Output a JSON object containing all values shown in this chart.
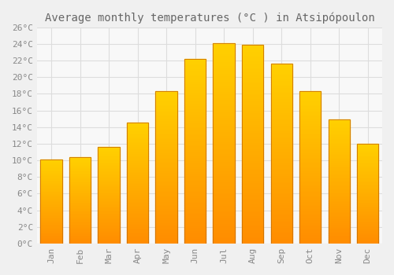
{
  "title": "Average monthly temperatures (°C ) in Atsipópoulon",
  "months": [
    "Jan",
    "Feb",
    "Mar",
    "Apr",
    "May",
    "Jun",
    "Jul",
    "Aug",
    "Sep",
    "Oct",
    "Nov",
    "Dec"
  ],
  "values": [
    10.1,
    10.4,
    11.6,
    14.5,
    18.3,
    22.2,
    24.1,
    23.9,
    21.6,
    18.3,
    14.9,
    12.0
  ],
  "bar_color_top": "#FFB300",
  "bar_color_bottom": "#FF8C00",
  "bar_edge_color": "#CC7000",
  "background_color": "#F0F0F0",
  "plot_bg_color": "#F8F8F8",
  "grid_color": "#DDDDDD",
  "text_color": "#888888",
  "title_color": "#666666",
  "ylim": [
    0,
    26
  ],
  "ytick_step": 2,
  "title_fontsize": 10,
  "tick_fontsize": 8,
  "font_family": "monospace"
}
